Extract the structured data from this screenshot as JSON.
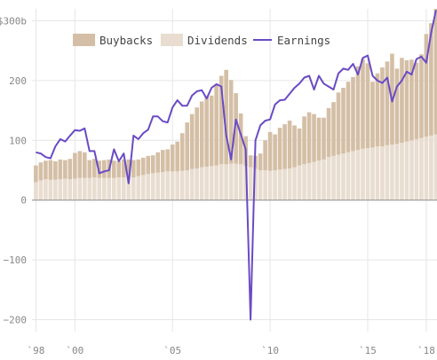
{
  "chart_data": {
    "type": "bar",
    "title": "",
    "xlabel": "",
    "ylabel": "",
    "ylim": [
      -220,
      320
    ],
    "xlim": [
      1997.8,
      2018.55
    ],
    "y_ticks": [
      {
        "value": 300,
        "label": "$300b"
      },
      {
        "value": 200,
        "label": "200"
      },
      {
        "value": 100,
        "label": "100"
      },
      {
        "value": 0,
        "label": "0"
      },
      {
        "value": -100,
        "label": "−100"
      },
      {
        "value": -200,
        "label": "−200"
      }
    ],
    "x_ticks": [
      {
        "value": 1998,
        "label": "`98"
      },
      {
        "value": 2000,
        "label": "`00"
      },
      {
        "value": 2005,
        "label": "`05"
      },
      {
        "value": 2010,
        "label": "`10"
      },
      {
        "value": 2015,
        "label": "`15"
      },
      {
        "value": 2018,
        "label": "`18"
      }
    ],
    "grid": true,
    "stacked": true,
    "legend_position": "top-left",
    "x": [
      1998.0,
      1998.25,
      1998.5,
      1998.75,
      1999.0,
      1999.25,
      1999.5,
      1999.75,
      2000.0,
      2000.25,
      2000.5,
      2000.75,
      2001.0,
      2001.25,
      2001.5,
      2001.75,
      2002.0,
      2002.25,
      2002.5,
      2002.75,
      2003.0,
      2003.25,
      2003.5,
      2003.75,
      2004.0,
      2004.25,
      2004.5,
      2004.75,
      2005.0,
      2005.25,
      2005.5,
      2005.75,
      2006.0,
      2006.25,
      2006.5,
      2006.75,
      2007.0,
      2007.25,
      2007.5,
      2007.75,
      2008.0,
      2008.25,
      2008.5,
      2008.75,
      2009.0,
      2009.25,
      2009.5,
      2009.75,
      2010.0,
      2010.25,
      2010.5,
      2010.75,
      2011.0,
      2011.25,
      2011.5,
      2011.75,
      2012.0,
      2012.25,
      2012.5,
      2012.75,
      2013.0,
      2013.25,
      2013.5,
      2013.75,
      2014.0,
      2014.25,
      2014.5,
      2014.75,
      2015.0,
      2015.25,
      2015.5,
      2015.75,
      2016.0,
      2016.25,
      2016.5,
      2016.75,
      2017.0,
      2017.25,
      2017.5,
      2017.75,
      2018.0,
      2018.25,
      2018.5
    ],
    "series": [
      {
        "name": "Dividends",
        "kind": "bar",
        "color": "#e8ddd0",
        "values": [
          30,
          33,
          35,
          34,
          34,
          35,
          36,
          35,
          36,
          37,
          37,
          37,
          38,
          37,
          37,
          37,
          37,
          38,
          38,
          39,
          38,
          40,
          42,
          44,
          45,
          46,
          47,
          48,
          48,
          48,
          49,
          50,
          52,
          53,
          55,
          56,
          57,
          58,
          60,
          60,
          61,
          61,
          60,
          57,
          55,
          52,
          50,
          50,
          49,
          50,
          51,
          52,
          53,
          55,
          58,
          60,
          62,
          64,
          66,
          68,
          72,
          74,
          76,
          78,
          80,
          82,
          84,
          86,
          87,
          88,
          90,
          90,
          92,
          93,
          94,
          96,
          98,
          100,
          102,
          104,
          106,
          108,
          110
        ]
      },
      {
        "name": "Buybacks",
        "kind": "bar",
        "color": "#d4bfa6",
        "values": [
          28,
          30,
          31,
          33,
          31,
          33,
          31,
          34,
          43,
          45,
          43,
          30,
          31,
          29,
          30,
          31,
          29,
          27,
          30,
          29,
          29,
          28,
          29,
          30,
          30,
          34,
          37,
          37,
          45,
          50,
          63,
          80,
          92,
          102,
          110,
          118,
          118,
          135,
          148,
          158,
          140,
          118,
          85,
          50,
          20,
          22,
          28,
          50,
          65,
          60,
          70,
          75,
          80,
          70,
          62,
          80,
          85,
          80,
          72,
          70,
          82,
          90,
          104,
          110,
          118,
          124,
          140,
          150,
          142,
          110,
          122,
          132,
          140,
          152,
          126,
          142,
          136,
          135,
          128,
          140,
          172,
          188,
          210
        ]
      },
      {
        "name": "Earnings",
        "kind": "line",
        "color": "#6a4bc4",
        "values": [
          80,
          78,
          72,
          70,
          90,
          102,
          98,
          108,
          117,
          116,
          120,
          82,
          82,
          45,
          48,
          50,
          85,
          65,
          78,
          28,
          108,
          102,
          112,
          118,
          140,
          140,
          132,
          130,
          155,
          167,
          158,
          158,
          175,
          182,
          184,
          170,
          188,
          194,
          190,
          108,
          68,
          135,
          110,
          85,
          -200,
          100,
          125,
          133,
          135,
          160,
          167,
          168,
          178,
          188,
          195,
          205,
          208,
          185,
          208,
          195,
          190,
          185,
          212,
          220,
          218,
          228,
          210,
          238,
          242,
          208,
          200,
          196,
          205,
          165,
          190,
          200,
          215,
          210,
          236,
          240,
          230,
          280,
          318
        ]
      }
    ]
  }
}
